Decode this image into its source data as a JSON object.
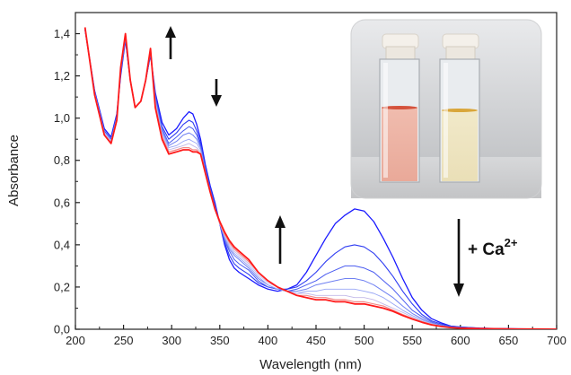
{
  "chart_data": {
    "type": "line",
    "title": "",
    "xlabel": "Wavelength (nm)",
    "ylabel": "Absorbance",
    "xlim": [
      200,
      700
    ],
    "ylim": [
      0.0,
      1.5
    ],
    "x_ticks": [
      200,
      250,
      300,
      350,
      400,
      450,
      500,
      550,
      600,
      650,
      700
    ],
    "x_tick_labels": [
      "200",
      "250",
      "300",
      "350",
      "400",
      "450",
      "500",
      "550",
      "600",
      "650",
      "700"
    ],
    "y_ticks": [
      0.0,
      0.2,
      0.4,
      0.6,
      0.8,
      1.0,
      1.2,
      1.4
    ],
    "y_tick_labels": [
      "0,0",
      "0,2",
      "0,4",
      "0,6",
      "0,8",
      "1,0",
      "1,2",
      "1,4"
    ],
    "grid": false,
    "legend": "none",
    "annotation": {
      "prefix": "+ Ca",
      "superscript": "2+"
    },
    "colors": {
      "start": "#1a1aff",
      "end": "#ff1a1a",
      "axis": "#222222"
    },
    "series_note_count": 8,
    "series": [
      {
        "values_x": [
          210,
          220,
          230,
          237,
          243,
          247,
          252,
          257,
          262,
          268,
          273,
          278,
          283,
          290,
          297,
          305,
          312,
          318,
          322,
          326,
          330,
          335,
          340,
          345,
          350,
          355,
          360,
          365,
          370,
          380,
          390,
          400,
          410,
          420,
          430,
          440,
          450,
          460,
          470,
          480,
          490,
          500,
          510,
          520,
          530,
          540,
          550,
          560,
          570,
          580,
          590,
          600,
          620,
          640,
          660,
          680,
          700
        ],
        "values_y": [
          1.42,
          1.13,
          0.95,
          0.91,
          1.02,
          1.2,
          1.37,
          1.18,
          1.05,
          1.08,
          1.18,
          1.3,
          1.12,
          0.98,
          0.92,
          0.95,
          1.0,
          1.03,
          1.02,
          0.97,
          0.9,
          0.78,
          0.68,
          0.6,
          0.5,
          0.4,
          0.33,
          0.29,
          0.27,
          0.24,
          0.21,
          0.19,
          0.18,
          0.19,
          0.21,
          0.27,
          0.35,
          0.43,
          0.5,
          0.54,
          0.57,
          0.56,
          0.51,
          0.43,
          0.34,
          0.24,
          0.15,
          0.09,
          0.05,
          0.03,
          0.015,
          0.01,
          0.005,
          0.003,
          0.002,
          0.001,
          0.0
        ]
      },
      {
        "values_x": [
          210,
          220,
          230,
          237,
          243,
          247,
          252,
          257,
          262,
          268,
          273,
          278,
          283,
          290,
          297,
          305,
          312,
          318,
          322,
          326,
          330,
          335,
          340,
          345,
          350,
          355,
          360,
          365,
          370,
          380,
          390,
          400,
          410,
          420,
          430,
          440,
          450,
          460,
          470,
          480,
          490,
          500,
          510,
          520,
          530,
          540,
          550,
          560,
          570,
          580,
          590,
          600,
          620,
          640,
          660,
          680,
          700
        ],
        "values_y": [
          1.42,
          1.12,
          0.94,
          0.9,
          1.01,
          1.21,
          1.37,
          1.18,
          1.05,
          1.08,
          1.18,
          1.3,
          1.11,
          0.96,
          0.9,
          0.93,
          0.97,
          0.99,
          0.98,
          0.94,
          0.88,
          0.77,
          0.67,
          0.59,
          0.5,
          0.41,
          0.35,
          0.31,
          0.29,
          0.26,
          0.22,
          0.2,
          0.19,
          0.19,
          0.2,
          0.23,
          0.27,
          0.32,
          0.36,
          0.39,
          0.4,
          0.39,
          0.36,
          0.31,
          0.25,
          0.18,
          0.12,
          0.07,
          0.04,
          0.025,
          0.015,
          0.01,
          0.005,
          0.003,
          0.002,
          0.001,
          0.0
        ]
      },
      {
        "values_x": [
          210,
          220,
          230,
          237,
          243,
          247,
          252,
          257,
          262,
          268,
          273,
          278,
          283,
          290,
          297,
          305,
          312,
          318,
          322,
          326,
          330,
          335,
          340,
          345,
          350,
          355,
          360,
          365,
          370,
          380,
          390,
          400,
          410,
          420,
          430,
          440,
          450,
          460,
          470,
          480,
          490,
          500,
          510,
          520,
          530,
          540,
          550,
          560,
          570,
          580,
          590,
          600,
          620,
          640,
          660,
          680,
          700
        ],
        "values_y": [
          1.42,
          1.12,
          0.94,
          0.9,
          1.01,
          1.22,
          1.38,
          1.18,
          1.05,
          1.08,
          1.18,
          1.31,
          1.1,
          0.95,
          0.88,
          0.91,
          0.94,
          0.96,
          0.95,
          0.92,
          0.87,
          0.76,
          0.66,
          0.58,
          0.5,
          0.42,
          0.37,
          0.33,
          0.31,
          0.28,
          0.23,
          0.2,
          0.19,
          0.18,
          0.19,
          0.21,
          0.23,
          0.26,
          0.28,
          0.3,
          0.3,
          0.29,
          0.27,
          0.23,
          0.19,
          0.14,
          0.09,
          0.06,
          0.035,
          0.02,
          0.012,
          0.008,
          0.004,
          0.002,
          0.001,
          0.001,
          0.0
        ]
      },
      {
        "values_x": [
          210,
          220,
          230,
          237,
          243,
          247,
          252,
          257,
          262,
          268,
          273,
          278,
          283,
          290,
          297,
          305,
          312,
          318,
          322,
          326,
          330,
          335,
          340,
          345,
          350,
          355,
          360,
          365,
          370,
          380,
          390,
          400,
          410,
          420,
          430,
          440,
          450,
          460,
          470,
          480,
          490,
          500,
          510,
          520,
          530,
          540,
          550,
          560,
          570,
          580,
          590,
          600,
          620,
          640,
          660,
          680,
          700
        ],
        "values_y": [
          1.42,
          1.12,
          0.93,
          0.89,
          1.0,
          1.22,
          1.38,
          1.18,
          1.05,
          1.08,
          1.18,
          1.31,
          1.09,
          0.94,
          0.87,
          0.89,
          0.92,
          0.93,
          0.92,
          0.9,
          0.86,
          0.75,
          0.66,
          0.58,
          0.5,
          0.43,
          0.38,
          0.35,
          0.33,
          0.29,
          0.24,
          0.21,
          0.19,
          0.18,
          0.18,
          0.19,
          0.21,
          0.22,
          0.23,
          0.24,
          0.24,
          0.23,
          0.21,
          0.18,
          0.15,
          0.11,
          0.075,
          0.05,
          0.03,
          0.018,
          0.01,
          0.007,
          0.004,
          0.002,
          0.001,
          0.001,
          0.0
        ]
      },
      {
        "values_x": [
          210,
          220,
          230,
          237,
          243,
          247,
          252,
          257,
          262,
          268,
          273,
          278,
          283,
          290,
          297,
          305,
          312,
          318,
          322,
          326,
          330,
          335,
          340,
          345,
          350,
          355,
          360,
          365,
          370,
          380,
          390,
          400,
          410,
          420,
          430,
          440,
          450,
          460,
          470,
          480,
          490,
          500,
          510,
          520,
          530,
          540,
          550,
          560,
          570,
          580,
          590,
          600,
          620,
          640,
          660,
          680,
          700
        ],
        "values_y": [
          1.43,
          1.12,
          0.93,
          0.89,
          1.0,
          1.23,
          1.39,
          1.18,
          1.05,
          1.08,
          1.18,
          1.32,
          1.08,
          0.93,
          0.86,
          0.87,
          0.89,
          0.9,
          0.89,
          0.88,
          0.85,
          0.75,
          0.65,
          0.57,
          0.5,
          0.44,
          0.39,
          0.36,
          0.34,
          0.3,
          0.25,
          0.21,
          0.19,
          0.18,
          0.17,
          0.18,
          0.18,
          0.19,
          0.19,
          0.19,
          0.19,
          0.18,
          0.17,
          0.15,
          0.12,
          0.09,
          0.065,
          0.045,
          0.028,
          0.016,
          0.009,
          0.006,
          0.003,
          0.002,
          0.001,
          0.001,
          0.0
        ]
      },
      {
        "values_x": [
          210,
          220,
          230,
          237,
          243,
          247,
          252,
          257,
          262,
          268,
          273,
          278,
          283,
          290,
          297,
          305,
          312,
          318,
          322,
          326,
          330,
          335,
          340,
          345,
          350,
          355,
          360,
          365,
          370,
          380,
          390,
          400,
          410,
          420,
          430,
          440,
          450,
          460,
          470,
          480,
          490,
          500,
          510,
          520,
          530,
          540,
          550,
          560,
          570,
          580,
          590,
          600,
          620,
          640,
          660,
          680,
          700
        ],
        "values_y": [
          1.43,
          1.12,
          0.93,
          0.89,
          1.0,
          1.23,
          1.39,
          1.18,
          1.05,
          1.08,
          1.18,
          1.32,
          1.07,
          0.92,
          0.85,
          0.86,
          0.87,
          0.88,
          0.87,
          0.86,
          0.84,
          0.74,
          0.65,
          0.57,
          0.5,
          0.44,
          0.4,
          0.37,
          0.35,
          0.31,
          0.26,
          0.22,
          0.2,
          0.18,
          0.17,
          0.17,
          0.16,
          0.16,
          0.16,
          0.16,
          0.15,
          0.15,
          0.14,
          0.12,
          0.1,
          0.08,
          0.058,
          0.04,
          0.025,
          0.015,
          0.009,
          0.006,
          0.003,
          0.002,
          0.001,
          0.001,
          0.0
        ]
      },
      {
        "values_x": [
          210,
          220,
          230,
          237,
          243,
          247,
          252,
          257,
          262,
          268,
          273,
          278,
          283,
          290,
          297,
          305,
          312,
          318,
          322,
          326,
          330,
          335,
          340,
          345,
          350,
          355,
          360,
          365,
          370,
          380,
          390,
          400,
          410,
          420,
          430,
          440,
          450,
          460,
          470,
          480,
          490,
          500,
          510,
          520,
          530,
          540,
          550,
          560,
          570,
          580,
          590,
          600,
          620,
          640,
          660,
          680,
          700
        ],
        "values_y": [
          1.43,
          1.11,
          0.92,
          0.88,
          0.99,
          1.24,
          1.4,
          1.18,
          1.05,
          1.08,
          1.18,
          1.33,
          1.06,
          0.91,
          0.84,
          0.85,
          0.86,
          0.86,
          0.85,
          0.85,
          0.83,
          0.74,
          0.65,
          0.57,
          0.5,
          0.45,
          0.41,
          0.38,
          0.36,
          0.32,
          0.27,
          0.23,
          0.2,
          0.18,
          0.16,
          0.16,
          0.15,
          0.15,
          0.14,
          0.14,
          0.13,
          0.13,
          0.12,
          0.11,
          0.09,
          0.07,
          0.052,
          0.036,
          0.023,
          0.014,
          0.008,
          0.005,
          0.003,
          0.002,
          0.001,
          0.001,
          0.0
        ]
      },
      {
        "values_x": [
          210,
          220,
          230,
          237,
          243,
          247,
          252,
          257,
          262,
          268,
          273,
          278,
          283,
          290,
          297,
          305,
          312,
          318,
          322,
          326,
          330,
          335,
          340,
          345,
          350,
          355,
          360,
          365,
          370,
          380,
          390,
          400,
          410,
          420,
          430,
          440,
          450,
          460,
          470,
          480,
          490,
          500,
          510,
          520,
          530,
          540,
          550,
          560,
          570,
          580,
          590,
          600,
          620,
          640,
          660,
          680,
          700
        ],
        "values_y": [
          1.43,
          1.11,
          0.92,
          0.88,
          0.99,
          1.24,
          1.4,
          1.18,
          1.05,
          1.08,
          1.18,
          1.33,
          1.05,
          0.9,
          0.83,
          0.84,
          0.85,
          0.85,
          0.84,
          0.84,
          0.83,
          0.74,
          0.65,
          0.57,
          0.51,
          0.46,
          0.42,
          0.39,
          0.37,
          0.33,
          0.27,
          0.23,
          0.2,
          0.18,
          0.16,
          0.15,
          0.14,
          0.14,
          0.13,
          0.13,
          0.12,
          0.12,
          0.11,
          0.1,
          0.085,
          0.065,
          0.048,
          0.033,
          0.021,
          0.013,
          0.008,
          0.005,
          0.003,
          0.002,
          0.001,
          0.001,
          0.0
        ]
      }
    ]
  }
}
